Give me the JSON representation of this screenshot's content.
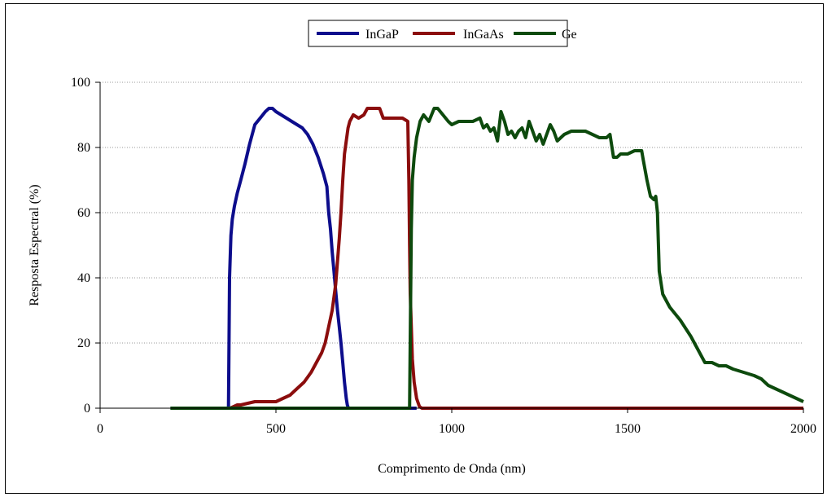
{
  "chart_data": {
    "type": "line",
    "title": "",
    "xlabel": "Comprimento de Onda (nm)",
    "ylabel": "Resposta Espectral (%)",
    "xlim": [
      0,
      2000
    ],
    "ylim": [
      0,
      100
    ],
    "xticks": [
      "0",
      "500",
      "1000",
      "1500",
      "2000"
    ],
    "yticks": [
      "0",
      "20",
      "40",
      "60",
      "80",
      "100"
    ],
    "grid": "horizontal",
    "legend_position": "top",
    "series": [
      {
        "name": "InGaP",
        "color": "#0d0d8c",
        "x": [
          200,
          365,
          368,
          372,
          376,
          382,
          390,
          400,
          412,
          425,
          440,
          455,
          470,
          480,
          490,
          500,
          515,
          530,
          545,
          560,
          575,
          590,
          605,
          620,
          635,
          645,
          650,
          655,
          660,
          665,
          670,
          675,
          680,
          685,
          690,
          695,
          700,
          703,
          706,
          900
        ],
        "y": [
          0,
          0,
          40,
          53,
          58,
          62,
          66,
          70,
          75,
          81,
          87,
          89,
          91,
          92,
          92,
          91,
          90,
          89,
          88,
          87,
          86,
          84,
          81,
          77,
          72,
          68,
          60,
          55,
          48,
          42,
          36,
          30,
          25,
          20,
          14,
          8,
          3,
          1,
          0,
          0
        ]
      },
      {
        "name": "InGaAs",
        "color": "#8b0d0d",
        "x": [
          360,
          370,
          380,
          390,
          400,
          420,
          440,
          460,
          480,
          500,
          520,
          540,
          560,
          580,
          600,
          615,
          630,
          640,
          650,
          660,
          670,
          675,
          680,
          685,
          690,
          695,
          700,
          705,
          710,
          720,
          735,
          750,
          760,
          780,
          795,
          805,
          815,
          830,
          845,
          860,
          875,
          878,
          880,
          882,
          885,
          888,
          893,
          900,
          908,
          915,
          1000,
          1200,
          1500,
          2000
        ],
        "y": [
          0,
          0,
          0.5,
          1,
          1,
          1.5,
          2,
          2,
          2,
          2,
          3,
          4,
          6,
          8,
          11,
          14,
          17,
          20,
          25,
          30,
          38,
          45,
          52,
          60,
          70,
          78,
          82,
          86,
          88,
          90,
          89,
          90,
          92,
          92,
          92,
          89,
          89,
          89,
          89,
          89,
          88,
          70,
          50,
          35,
          25,
          15,
          8,
          3,
          0.5,
          0,
          0,
          0,
          0,
          0
        ]
      },
      {
        "name": "Ge",
        "color": "#0d4a0d",
        "x": [
          200,
          880,
          885,
          888,
          893,
          900,
          910,
          920,
          935,
          950,
          960,
          975,
          990,
          1000,
          1020,
          1040,
          1060,
          1080,
          1090,
          1100,
          1110,
          1120,
          1130,
          1140,
          1150,
          1160,
          1170,
          1180,
          1190,
          1200,
          1210,
          1220,
          1230,
          1240,
          1250,
          1260,
          1270,
          1280,
          1290,
          1300,
          1310,
          1320,
          1340,
          1360,
          1380,
          1400,
          1420,
          1440,
          1450,
          1460,
          1470,
          1480,
          1500,
          1520,
          1540,
          1545,
          1555,
          1565,
          1575,
          1580,
          1585,
          1590,
          1600,
          1620,
          1650,
          1680,
          1700,
          1720,
          1740,
          1760,
          1780,
          1800,
          1830,
          1860,
          1880,
          1900,
          1920,
          1940,
          1960,
          1980,
          2000
        ],
        "y": [
          0,
          0,
          55,
          70,
          77,
          83,
          88,
          90,
          88,
          92,
          92,
          90,
          88,
          87,
          88,
          88,
          88,
          89,
          86,
          87,
          85,
          86,
          82,
          91,
          88,
          84,
          85,
          83,
          85,
          86,
          83,
          88,
          85,
          82,
          84,
          81,
          84,
          87,
          85,
          82,
          83,
          84,
          85,
          85,
          85,
          84,
          83,
          83,
          84,
          77,
          77,
          78,
          78,
          79,
          79,
          76,
          70,
          65,
          64,
          65,
          60,
          42,
          35,
          31,
          27,
          22,
          18,
          14,
          14,
          13,
          13,
          12,
          11,
          10,
          9,
          7,
          6,
          5,
          4,
          3,
          2
        ]
      }
    ]
  }
}
